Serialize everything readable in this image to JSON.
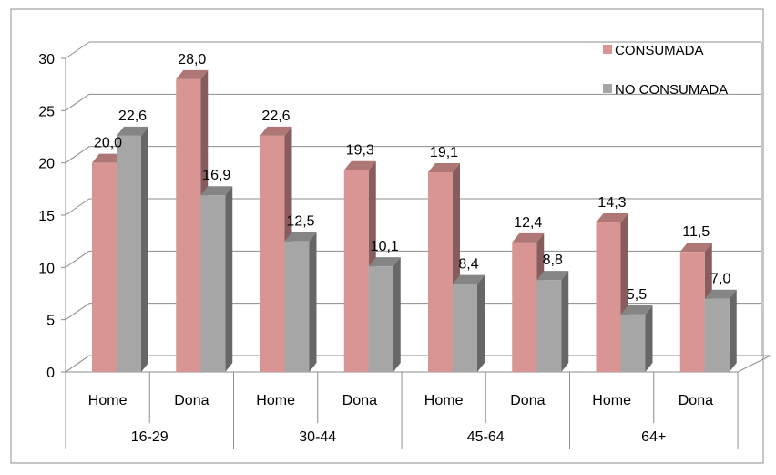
{
  "chart_data": {
    "type": "bar",
    "categories": [
      {
        "sub": "Home",
        "group": "16-29"
      },
      {
        "sub": "Dona",
        "group": "16-29"
      },
      {
        "sub": "Home",
        "group": "30-44"
      },
      {
        "sub": "Dona",
        "group": "30-44"
      },
      {
        "sub": "Home",
        "group": "45-64"
      },
      {
        "sub": "Dona",
        "group": "45-64"
      },
      {
        "sub": "Home",
        "group": "64+"
      },
      {
        "sub": "Dona",
        "group": "64+"
      }
    ],
    "groups": [
      "16-29",
      "30-44",
      "45-64",
      "64+"
    ],
    "series": [
      {
        "name": "CONSUMADA",
        "values": [
          20.0,
          28.0,
          22.6,
          19.3,
          19.1,
          12.4,
          14.3,
          11.5
        ],
        "labels": [
          "20,0",
          "28,0",
          "22,6",
          "19,3",
          "19,1",
          "12,4",
          "14,3",
          "11,5"
        ],
        "color": "#d99594"
      },
      {
        "name": "NO CONSUMADA",
        "values": [
          22.6,
          16.9,
          12.5,
          10.1,
          8.4,
          8.8,
          5.5,
          7.0
        ],
        "labels": [
          "22,6",
          "16,9",
          "12,5",
          "10,1",
          "8,4",
          "8,8",
          "5,5",
          "7,0"
        ],
        "color": "#a6a6a6"
      }
    ],
    "y_ticks": [
      "0",
      "5",
      "10",
      "15",
      "20",
      "25",
      "30"
    ],
    "ylim": [
      0,
      30
    ],
    "title": "",
    "xlabel": "",
    "ylabel": "",
    "grid": true,
    "legend_position": "top-right",
    "three_d": true
  }
}
